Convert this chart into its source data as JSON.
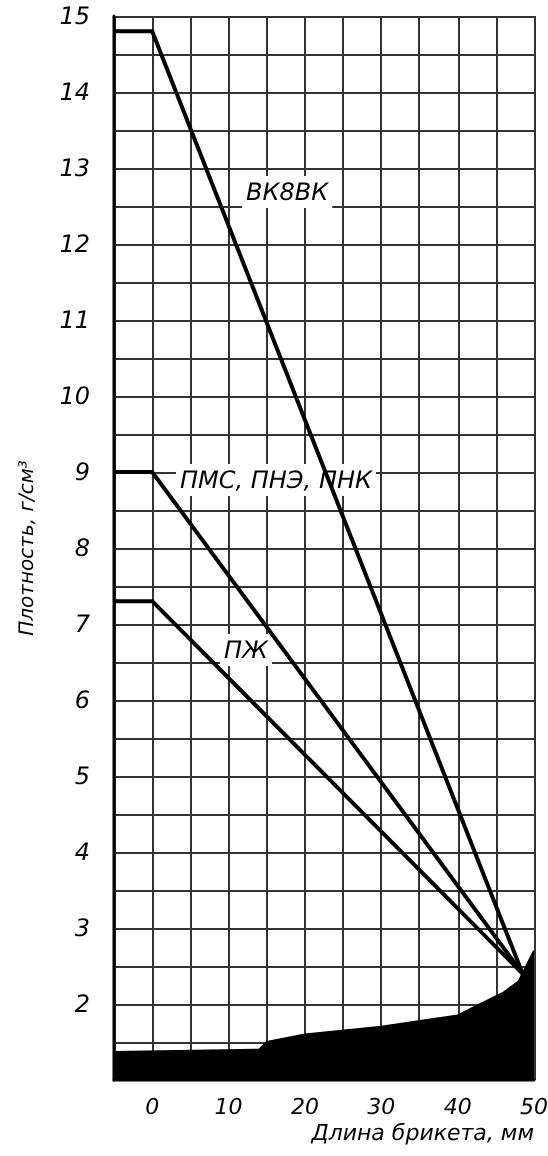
{
  "chart_data": {
    "type": "line",
    "xlabel": "Длина брикета, мм",
    "ylabel": "Плотность, г/см³",
    "xlim": [
      -5,
      50
    ],
    "ylim": [
      1,
      15
    ],
    "xticks": [
      {
        "value": -5,
        "label": null
      },
      0,
      {
        "value": 5,
        "label": null
      },
      10,
      {
        "value": 15,
        "label": null
      },
      20,
      {
        "value": 25,
        "label": null
      },
      30,
      {
        "value": 35,
        "label": null
      },
      40,
      {
        "value": 45,
        "label": null
      },
      50
    ],
    "yticks": [
      {
        "value": 1.5,
        "label": null
      },
      2,
      {
        "value": 2.5,
        "label": null
      },
      3,
      {
        "value": 3.5,
        "label": null
      },
      4,
      {
        "value": 4.5,
        "label": null
      },
      5,
      {
        "value": 5.5,
        "label": null
      },
      6,
      {
        "value": 6.5,
        "label": null
      },
      7,
      {
        "value": 7.5,
        "label": null
      },
      8,
      {
        "value": 8.5,
        "label": null
      },
      9,
      {
        "value": 9.5,
        "label": null
      },
      10,
      {
        "value": 10.5,
        "label": null
      },
      11,
      {
        "value": 11.5,
        "label": null
      },
      12,
      {
        "value": 12.5,
        "label": null
      },
      13,
      {
        "value": 13.5,
        "label": null
      },
      14,
      {
        "value": 14.5,
        "label": null
      },
      15
    ],
    "grid": true,
    "marker": "none",
    "line_style": "solid",
    "series": [
      {
        "color": "#000000",
        "x": [
          -5,
          0,
          48.5
        ],
        "values": [
          14.8,
          14.8,
          2.4
        ]
      },
      {
        "color": "#000000",
        "x": [
          -5,
          0,
          48.5
        ],
        "values": [
          9,
          9,
          2.4
        ]
      },
      {
        "color": "#000000",
        "x": [
          -5,
          0,
          48.5
        ],
        "values": [
          7.3,
          7.3,
          2.4
        ]
      },
      {
        "type": "area",
        "color": "#000000",
        "x": [
          -5,
          14,
          15,
          20,
          30,
          40,
          43,
          46,
          48,
          49,
          50
        ],
        "values": [
          1.37,
          1.4,
          1.5,
          1.6,
          1.7,
          1.85,
          2.0,
          2.15,
          2.3,
          2.5,
          2.7
        ]
      }
    ],
    "annotations": [
      "ВК8ВК",
      "ПМС, ПНЭ, ПНК",
      "ПЖ"
    ]
  }
}
